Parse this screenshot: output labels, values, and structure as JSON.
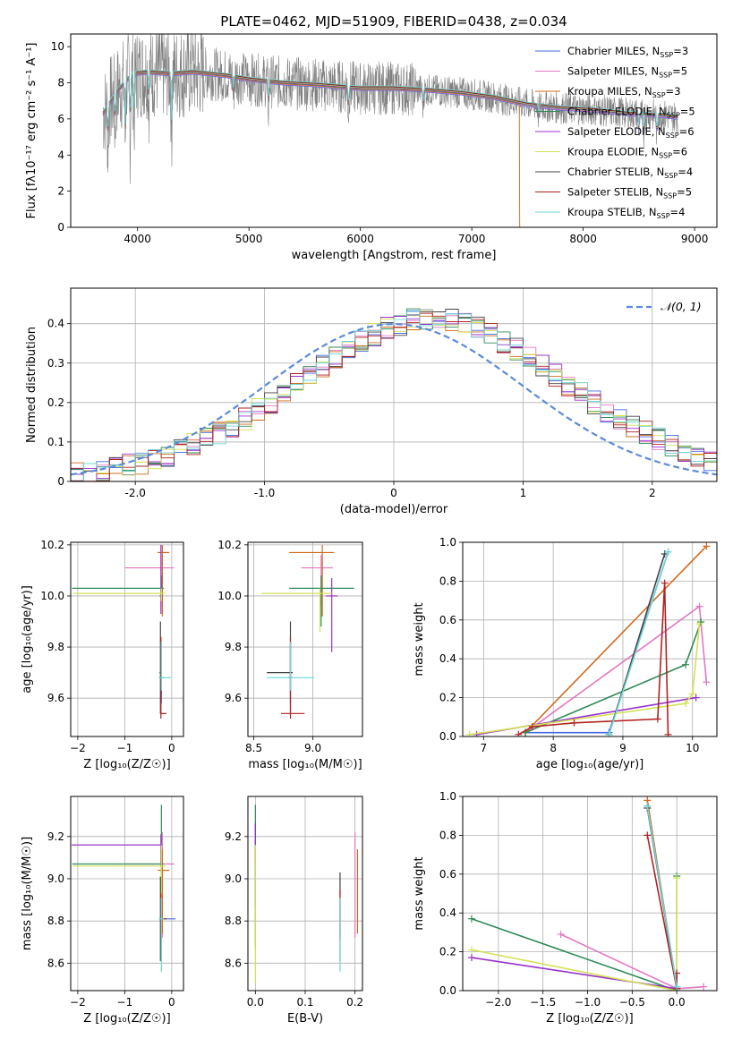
{
  "figure": {
    "title": "PLATE=0462, MJD=51909, FIBERID=0438, z=0.034"
  },
  "models": [
    {
      "name": "Chabrier MILES",
      "n_ssp": 3,
      "color": "#4169e1"
    },
    {
      "name": "Salpeter MILES",
      "n_ssp": 5,
      "color": "#e377c2"
    },
    {
      "name": "Kroupa MILES",
      "n_ssp": 3,
      "color": "#d2691e"
    },
    {
      "name": "Chabrier ELODIE",
      "n_ssp": 5,
      "color": "#2e8b57"
    },
    {
      "name": "Salpeter ELODIE",
      "n_ssp": 6,
      "color": "#9932cc"
    },
    {
      "name": "Kroupa ELODIE",
      "n_ssp": 6,
      "color": "#d4e157"
    },
    {
      "name": "Chabrier STELIB",
      "n_ssp": 4,
      "color": "#444444"
    },
    {
      "name": "Salpeter STELIB",
      "n_ssp": 5,
      "color": "#b22222"
    },
    {
      "name": "Kroupa STELIB",
      "n_ssp": 4,
      "color": "#6fd6d6"
    }
  ],
  "chart_data": [
    {
      "id": "spectrum",
      "type": "line",
      "xlabel": "wavelength [Angstrom, rest frame]",
      "ylabel": "Flux [fλ10⁻¹⁷ erg cm⁻² s⁻¹ A⁻¹]",
      "xlim": [
        3400,
        9200
      ],
      "ylim": [
        0,
        10.7
      ],
      "xticks": [
        4000,
        5000,
        6000,
        7000,
        8000,
        9000
      ],
      "yticks": [
        0,
        2,
        4,
        6,
        8,
        10
      ],
      "grid": false,
      "legend": "top-right",
      "data_color": "#808080",
      "continuum": {
        "x": [
          3690,
          3800,
          3950,
          4100,
          4300,
          4500,
          4800,
          5000,
          5300,
          5600,
          6000,
          6300,
          6600,
          6900,
          7200,
          7500,
          7800,
          8100,
          8400,
          8700,
          8850
        ],
        "y": [
          6.3,
          7.4,
          8.5,
          8.6,
          8.5,
          8.6,
          8.4,
          8.2,
          8.0,
          7.9,
          7.7,
          7.7,
          7.6,
          7.45,
          7.2,
          6.8,
          6.6,
          6.5,
          6.3,
          6.2,
          6.1
        ]
      },
      "absorption_lines": [
        {
          "x": 3734,
          "depth": 2.4
        },
        {
          "x": 3798,
          "depth": 2.0
        },
        {
          "x": 3889,
          "depth": 3.2
        },
        {
          "x": 3934,
          "depth": 3.6
        },
        {
          "x": 3968,
          "depth": 3.3
        },
        {
          "x": 4101,
          "depth": 1.8
        },
        {
          "x": 4305,
          "depth": 3.5
        },
        {
          "x": 4861,
          "depth": 1.2
        },
        {
          "x": 5175,
          "depth": 1.5
        },
        {
          "x": 5893,
          "depth": 1.4
        },
        {
          "x": 6563,
          "depth": 1.0
        },
        {
          "x": 7600,
          "depth": 0.8
        },
        {
          "x": 8498,
          "depth": 1.0
        },
        {
          "x": 8542,
          "depth": 1.5
        },
        {
          "x": 8662,
          "depth": 1.4
        }
      ]
    },
    {
      "id": "residuals",
      "type": "step",
      "xlabel": "(data-model)/error",
      "ylabel": "Normed distribution",
      "xlim": [
        -2.5,
        2.5
      ],
      "ylim": [
        0,
        0.49
      ],
      "xticks": [
        -2,
        -1,
        0,
        1,
        2
      ],
      "yticks": [
        0.0,
        0.1,
        0.2,
        0.3,
        0.4
      ],
      "grid": true,
      "legend": "top-right",
      "gaussian_label": "𝒩(0, 1)",
      "gaussian_color": "#5b8bd9",
      "bin_width": 0.1,
      "bin_start": -2.5,
      "base_profile": [
        0.018,
        0.022,
        0.027,
        0.033,
        0.04,
        0.048,
        0.057,
        0.067,
        0.079,
        0.092,
        0.107,
        0.123,
        0.141,
        0.16,
        0.18,
        0.201,
        0.223,
        0.245,
        0.268,
        0.291,
        0.313,
        0.335,
        0.355,
        0.373,
        0.388,
        0.4,
        0.408,
        0.412,
        0.412,
        0.408,
        0.4,
        0.388,
        0.373,
        0.355,
        0.335,
        0.313,
        0.291,
        0.268,
        0.245,
        0.223,
        0.201,
        0.18,
        0.16,
        0.141,
        0.123,
        0.107,
        0.092,
        0.079,
        0.067,
        0.057
      ]
    },
    {
      "id": "age-vs-Z",
      "type": "errorbar",
      "xlabel": "Z [log₁₀(Z/Z☉)]",
      "ylabel": "age  [log₁₀(age/yr)]",
      "xlim": [
        -2.15,
        0.25
      ],
      "ylim": [
        9.45,
        10.21
      ],
      "xticks": [
        -2,
        -1,
        0
      ],
      "yticks": [
        9.6,
        9.8,
        10.0,
        10.2
      ],
      "grid": true,
      "points": [
        {
          "model": 0,
          "x": -0.22,
          "xerr": [
            0.05,
            0.05
          ],
          "y": 9.68,
          "yerr": [
            0.1,
            0.14
          ]
        },
        {
          "model": 1,
          "x": -0.2,
          "xerr": [
            0.8,
            0.25
          ],
          "y": 10.11,
          "yerr": [
            0.15,
            0.05
          ]
        },
        {
          "model": 2,
          "x": -0.2,
          "xerr": [
            0.1,
            0.15
          ],
          "y": 10.17,
          "yerr": [
            0.25,
            0.03
          ]
        },
        {
          "model": 3,
          "x": -0.22,
          "xerr": [
            1.9,
            0.05
          ],
          "y": 10.03,
          "yerr": [
            0.05,
            0.05
          ]
        },
        {
          "model": 4,
          "x": -0.23,
          "xerr": [
            0.03,
            0.03
          ],
          "y": 10.0,
          "yerr": [
            0.07,
            0.2
          ]
        },
        {
          "model": 5,
          "x": -0.22,
          "xerr": [
            1.88,
            0.08
          ],
          "y": 10.01,
          "yerr": [
            0.03,
            0.02
          ]
        },
        {
          "model": 6,
          "x": -0.24,
          "xerr": [
            0.02,
            0.02
          ],
          "y": 9.7,
          "yerr": [
            0.16,
            0.2
          ]
        },
        {
          "model": 7,
          "x": -0.23,
          "xerr": [
            0.02,
            0.12
          ],
          "y": 9.54,
          "yerr": [
            0.02,
            0.3
          ]
        },
        {
          "model": 8,
          "x": -0.22,
          "xerr": [
            0.05,
            0.2
          ],
          "y": 9.68,
          "yerr": [
            0.05,
            0.14
          ]
        }
      ]
    },
    {
      "id": "age-vs-mass",
      "type": "errorbar",
      "xlabel": "mass [log₁₀(M/M☉)]",
      "ylabel": "",
      "xlim": [
        8.45,
        9.42
      ],
      "ylim": [
        9.45,
        10.21
      ],
      "xticks": [
        8.5,
        9.0
      ],
      "yticks": [
        9.6,
        9.8,
        10.0,
        10.2
      ],
      "grid": true,
      "points": [
        {
          "model": 0,
          "x": 8.81,
          "xerr": [
            0.02,
            0.02
          ],
          "y": 9.68,
          "yerr": [
            0.1,
            0.14
          ]
        },
        {
          "model": 1,
          "x": 9.07,
          "xerr": [
            0.17,
            0.1
          ],
          "y": 10.11,
          "yerr": [
            0.15,
            0.05
          ]
        },
        {
          "model": 2,
          "x": 9.08,
          "xerr": [
            0.28,
            0.1
          ],
          "y": 10.17,
          "yerr": [
            0.25,
            0.03
          ]
        },
        {
          "model": 3,
          "x": 9.07,
          "xerr": [
            0.27,
            0.28
          ],
          "y": 10.03,
          "yerr": [
            0.15,
            0.05
          ]
        },
        {
          "model": 4,
          "x": 9.16,
          "xerr": [
            0.05,
            0.05
          ],
          "y": 10.0,
          "yerr": [
            0.22,
            0.07
          ]
        },
        {
          "model": 5,
          "x": 9.06,
          "xerr": [
            0.5,
            0.1
          ],
          "y": 10.01,
          "yerr": [
            0.15,
            0.02
          ]
        },
        {
          "model": 6,
          "x": 8.81,
          "xerr": [
            0.2,
            0.02
          ],
          "y": 9.7,
          "yerr": [
            0.16,
            0.2
          ]
        },
        {
          "model": 7,
          "x": 8.81,
          "xerr": [
            0.08,
            0.12
          ],
          "y": 9.54,
          "yerr": [
            0.02,
            0.3
          ]
        },
        {
          "model": 8,
          "x": 8.81,
          "xerr": [
            0.2,
            0.2
          ],
          "y": 9.68,
          "yerr": [
            0.05,
            0.14
          ]
        }
      ]
    },
    {
      "id": "weight-vs-age",
      "type": "line",
      "xlabel": "age  [log₁₀(age/yr)]",
      "ylabel": "mass weight",
      "xlim": [
        6.7,
        10.35
      ],
      "ylim": [
        0,
        1
      ],
      "xticks": [
        7,
        8,
        9,
        10
      ],
      "yticks": [
        0.0,
        0.2,
        0.4,
        0.6,
        0.8,
        1.0
      ],
      "grid": true,
      "series": [
        {
          "model": 0,
          "x": [
            7.6,
            8.8,
            9.65
          ],
          "y": [
            0.02,
            0.02,
            0.95
          ]
        },
        {
          "model": 1,
          "x": [
            7.6,
            10.1,
            10.2
          ],
          "y": [
            0.02,
            0.67,
            0.28
          ]
        },
        {
          "model": 2,
          "x": [
            7.6,
            10.2
          ],
          "y": [
            0.02,
            0.98
          ]
        },
        {
          "model": 3,
          "x": [
            7.6,
            9.9,
            10.12
          ],
          "y": [
            0.02,
            0.37,
            0.59
          ]
        },
        {
          "model": 4,
          "x": [
            6.9,
            10.05
          ],
          "y": [
            0.01,
            0.2
          ]
        },
        {
          "model": 5,
          "x": [
            6.8,
            9.9,
            10.0,
            10.1
          ],
          "y": [
            0.01,
            0.17,
            0.22,
            0.58
          ]
        },
        {
          "model": 6,
          "x": [
            8.8,
            9.6
          ],
          "y": [
            0.01,
            0.94
          ]
        },
        {
          "model": 7,
          "x": [
            7.5,
            7.7,
            8.3,
            9.5,
            9.6,
            9.65
          ],
          "y": [
            0.01,
            0.05,
            0.07,
            0.09,
            0.79,
            0.01
          ]
        },
        {
          "model": 8,
          "x": [
            8.8,
            9.65
          ],
          "y": [
            0.01,
            0.95
          ]
        }
      ]
    },
    {
      "id": "mass-vs-Z",
      "type": "errorbar",
      "xlabel": "Z [log₁₀(Z/Z☉)]",
      "ylabel": "mass [log₁₀(M/M☉)]",
      "xlim": [
        -2.15,
        0.25
      ],
      "ylim": [
        8.47,
        9.39
      ],
      "xticks": [
        -2,
        -1,
        0
      ],
      "yticks": [
        8.6,
        8.8,
        9.0,
        9.2
      ],
      "grid": true,
      "points": [
        {
          "model": 0,
          "x": -0.22,
          "xerr": [
            0.05,
            0.3
          ],
          "y": 8.81,
          "yerr": [
            0.02,
            0.02
          ]
        },
        {
          "model": 1,
          "x": -0.2,
          "xerr": [
            0.8,
            0.25
          ],
          "y": 9.07,
          "yerr": [
            0.35,
            0.15
          ]
        },
        {
          "model": 2,
          "x": -0.2,
          "xerr": [
            0.1,
            0.15
          ],
          "y": 9.04,
          "yerr": [
            0.3,
            0.1
          ]
        },
        {
          "model": 3,
          "x": -0.22,
          "xerr": [
            1.9,
            0.05
          ],
          "y": 9.07,
          "yerr": [
            0.4,
            0.28
          ]
        },
        {
          "model": 4,
          "x": -0.23,
          "xerr": [
            1.9,
            0.03
          ],
          "y": 9.16,
          "yerr": [
            0.1,
            0.05
          ]
        },
        {
          "model": 5,
          "x": -0.22,
          "xerr": [
            1.88,
            0.08
          ],
          "y": 9.06,
          "yerr": [
            0.5,
            0.1
          ]
        },
        {
          "model": 6,
          "x": -0.24,
          "xerr": [
            0.02,
            0.02
          ],
          "y": 8.81,
          "yerr": [
            0.2,
            0.2
          ]
        },
        {
          "model": 7,
          "x": -0.23,
          "xerr": [
            0.02,
            0.12
          ],
          "y": 8.81,
          "yerr": [
            0.08,
            0.12
          ]
        },
        {
          "model": 8,
          "x": -0.22,
          "xerr": [
            0.05,
            0.05
          ],
          "y": 8.81,
          "yerr": [
            0.25,
            0.1
          ]
        }
      ]
    },
    {
      "id": "mass-vs-ebv",
      "type": "errorbar",
      "xlabel": "E(B-V)",
      "ylabel": "",
      "xlim": [
        -0.015,
        0.215
      ],
      "ylim": [
        8.47,
        9.39
      ],
      "xticks": [
        0.0,
        0.1,
        0.2
      ],
      "yticks": [
        8.6,
        8.8,
        9.0,
        9.2
      ],
      "grid": true,
      "points": [
        {
          "model": 0,
          "x": 0.0,
          "xerr": [
            0,
            0
          ],
          "y": 9.07,
          "yerr": [
            0.2,
            0.2
          ]
        },
        {
          "model": 1,
          "x": 0.2,
          "xerr": [
            0,
            0
          ],
          "y": 9.07,
          "yerr": [
            0.35,
            0.15
          ]
        },
        {
          "model": 2,
          "x": 0.205,
          "xerr": [
            0,
            0
          ],
          "y": 9.04,
          "yerr": [
            0.3,
            0.1
          ]
        },
        {
          "model": 3,
          "x": 0.0,
          "xerr": [
            0,
            0
          ],
          "y": 9.07,
          "yerr": [
            0.4,
            0.28
          ]
        },
        {
          "model": 4,
          "x": 0.0,
          "xerr": [
            0,
            0
          ],
          "y": 9.16,
          "yerr": [
            0.1,
            0.1
          ]
        },
        {
          "model": 5,
          "x": 0.0,
          "xerr": [
            0,
            0
          ],
          "y": 9.06,
          "yerr": [
            0.55,
            0.1
          ]
        },
        {
          "model": 6,
          "x": 0.17,
          "xerr": [
            0,
            0
          ],
          "y": 8.81,
          "yerr": [
            0.2,
            0.22
          ]
        },
        {
          "model": 7,
          "x": 0.17,
          "xerr": [
            0,
            0
          ],
          "y": 8.81,
          "yerr": [
            0.1,
            0.14
          ]
        },
        {
          "model": 8,
          "x": 0.17,
          "xerr": [
            0,
            0
          ],
          "y": 8.81,
          "yerr": [
            0.25,
            0.1
          ]
        }
      ]
    },
    {
      "id": "weight-vs-Z",
      "type": "line",
      "xlabel": "Z [log₁₀(Z/Z☉)]",
      "ylabel": "mass weight",
      "xlim": [
        -2.4,
        0.45
      ],
      "ylim": [
        0,
        1
      ],
      "xticks": [
        -2.0,
        -1.5,
        -1.0,
        -0.5,
        0.0
      ],
      "yticks": [
        0.0,
        0.2,
        0.4,
        0.6,
        0.8,
        1.0
      ],
      "grid": true,
      "series": [
        {
          "model": 0,
          "x": [
            -0.33,
            0.0
          ],
          "y": [
            0.95,
            0.02
          ]
        },
        {
          "model": 1,
          "x": [
            -1.3,
            0.0,
            0.3
          ],
          "y": [
            0.29,
            0.01,
            0.02
          ]
        },
        {
          "model": 2,
          "x": [
            -0.33,
            0.0
          ],
          "y": [
            0.98,
            0.01
          ]
        },
        {
          "model": 3,
          "x": [
            -2.3,
            0.0,
            0.0
          ],
          "y": [
            0.37,
            0.0,
            0.59
          ]
        },
        {
          "model": 4,
          "x": [
            -2.3,
            0.0
          ],
          "y": [
            0.17,
            0.01
          ]
        },
        {
          "model": 5,
          "x": [
            -2.3,
            0.0,
            0.0
          ],
          "y": [
            0.21,
            0.0,
            0.58
          ]
        },
        {
          "model": 6,
          "x": [
            -0.33,
            0.0
          ],
          "y": [
            0.94,
            0.01
          ]
        },
        {
          "model": 7,
          "x": [
            -0.33,
            0.0,
            0.0
          ],
          "y": [
            0.8,
            0.01,
            0.09
          ]
        },
        {
          "model": 8,
          "x": [
            -0.33,
            0.0
          ],
          "y": [
            0.95,
            0.02
          ]
        }
      ]
    }
  ]
}
